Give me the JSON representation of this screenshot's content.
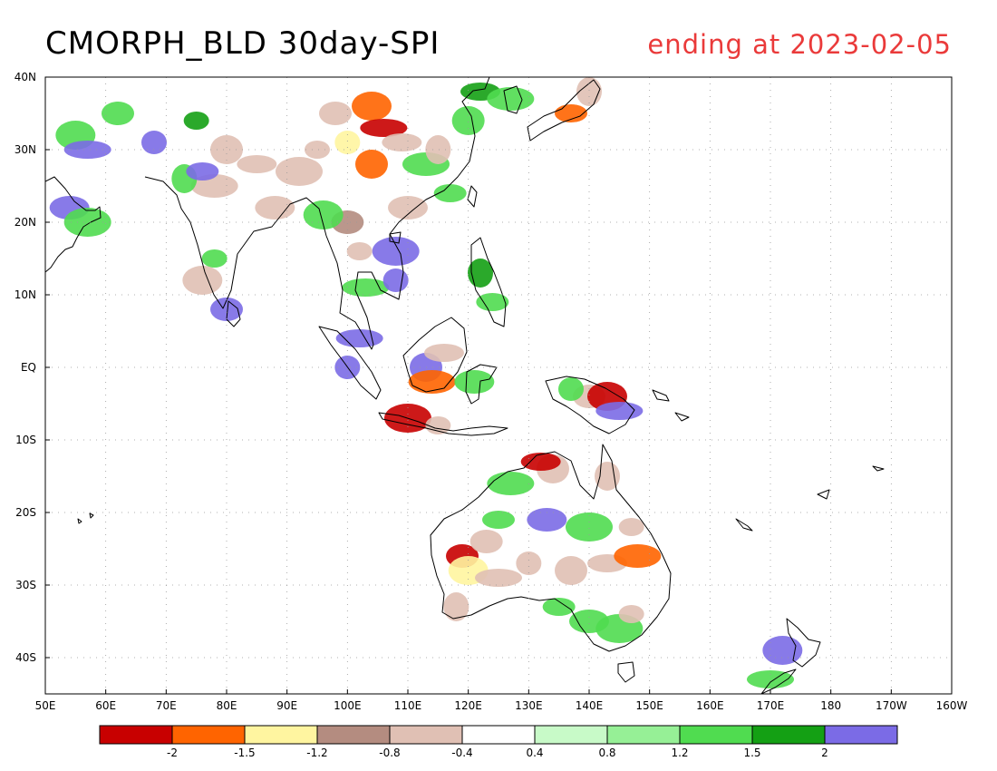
{
  "title": "CMORPH_BLD 30day-SPI",
  "subtitle": "ending at 2023-02-05",
  "colors": {
    "title": "#000000",
    "subtitle": "#ea3a3a",
    "land": "#ffffff",
    "coast": "#000000",
    "grid": "#999999"
  },
  "map": {
    "projection": "equirectangular",
    "lon_range": [
      50,
      200
    ],
    "lat_range": [
      -45,
      40
    ]
  },
  "lat_ticks": [
    {
      "lat": 40,
      "label": "40N"
    },
    {
      "lat": 30,
      "label": "30N"
    },
    {
      "lat": 20,
      "label": "20N"
    },
    {
      "lat": 10,
      "label": "10N"
    },
    {
      "lat": 0,
      "label": "EQ"
    },
    {
      "lat": -10,
      "label": "10S"
    },
    {
      "lat": -20,
      "label": "20S"
    },
    {
      "lat": -30,
      "label": "30S"
    },
    {
      "lat": -40,
      "label": "40S"
    }
  ],
  "lon_ticks": [
    {
      "lon": 50,
      "label": "50E"
    },
    {
      "lon": 60,
      "label": "60E"
    },
    {
      "lon": 70,
      "label": "70E"
    },
    {
      "lon": 80,
      "label": "80E"
    },
    {
      "lon": 90,
      "label": "90E"
    },
    {
      "lon": 100,
      "label": "100E"
    },
    {
      "lon": 110,
      "label": "110E"
    },
    {
      "lon": 120,
      "label": "120E"
    },
    {
      "lon": 130,
      "label": "130E"
    },
    {
      "lon": 140,
      "label": "140E"
    },
    {
      "lon": 150,
      "label": "150E"
    },
    {
      "lon": 160,
      "label": "160E"
    },
    {
      "lon": 170,
      "label": "170E"
    },
    {
      "lon": 180,
      "label": "180"
    },
    {
      "lon": 190,
      "label": "170W"
    },
    {
      "lon": 200,
      "label": "160W"
    }
  ],
  "colorbar": {
    "colors": [
      "#c80000",
      "#ff6400",
      "#fff5a0",
      "#b48c80",
      "#e0c0b4",
      "#ffffff",
      "#c8fac8",
      "#96f096",
      "#50dc50",
      "#14a014",
      "#7b6be6"
    ],
    "labels": [
      "-2",
      "-1.5",
      "-1.2",
      "-0.8",
      "-0.4",
      "0.4",
      "0.8",
      "1.2",
      "1.5",
      "2"
    ]
  },
  "shading": [
    {
      "lon": 75,
      "lat": 34,
      "cls": 9
    },
    {
      "lon": 62,
      "lat": 35,
      "cls": 8
    },
    {
      "lon": 55,
      "lat": 32,
      "cls": 8
    },
    {
      "lon": 57,
      "lat": 30,
      "cls": 10
    },
    {
      "lon": 68,
      "lat": 31,
      "cls": 10
    },
    {
      "lon": 80,
      "lat": 30,
      "cls": 4
    },
    {
      "lon": 85,
      "lat": 28,
      "cls": 4
    },
    {
      "lon": 78,
      "lat": 25,
      "cls": 4
    },
    {
      "lon": 73,
      "lat": 26,
      "cls": 8
    },
    {
      "lon": 76,
      "lat": 27,
      "cls": 10
    },
    {
      "lon": 88,
      "lat": 22,
      "cls": 4
    },
    {
      "lon": 92,
      "lat": 27,
      "cls": 4
    },
    {
      "lon": 95,
      "lat": 30,
      "cls": 4
    },
    {
      "lon": 98,
      "lat": 35,
      "cls": 4
    },
    {
      "lon": 104,
      "lat": 36,
      "cls": 1
    },
    {
      "lon": 106,
      "lat": 33,
      "cls": 0
    },
    {
      "lon": 100,
      "lat": 31,
      "cls": 2
    },
    {
      "lon": 104,
      "lat": 28,
      "cls": 1
    },
    {
      "lon": 109,
      "lat": 31,
      "cls": 4
    },
    {
      "lon": 113,
      "lat": 28,
      "cls": 8
    },
    {
      "lon": 115,
      "lat": 30,
      "cls": 4
    },
    {
      "lon": 117,
      "lat": 24,
      "cls": 8
    },
    {
      "lon": 110,
      "lat": 22,
      "cls": 4
    },
    {
      "lon": 108,
      "lat": 16,
      "cls": 10
    },
    {
      "lon": 102,
      "lat": 16,
      "cls": 4
    },
    {
      "lon": 100,
      "lat": 20,
      "cls": 3
    },
    {
      "lon": 96,
      "lat": 21,
      "cls": 8
    },
    {
      "lon": 103,
      "lat": 11,
      "cls": 8
    },
    {
      "lon": 108,
      "lat": 12,
      "cls": 10
    },
    {
      "lon": 120,
      "lat": 34,
      "cls": 8
    },
    {
      "lon": 122,
      "lat": 38,
      "cls": 9
    },
    {
      "lon": 127,
      "lat": 37,
      "cls": 8
    },
    {
      "lon": 140,
      "lat": 38,
      "cls": 4
    },
    {
      "lon": 137,
      "lat": 35,
      "cls": 1
    },
    {
      "lon": 54,
      "lat": 22,
      "cls": 10
    },
    {
      "lon": 57,
      "lat": 20,
      "cls": 8
    },
    {
      "lon": 78,
      "lat": 15,
      "cls": 8
    },
    {
      "lon": 80,
      "lat": 8,
      "cls": 10
    },
    {
      "lon": 76,
      "lat": 12,
      "cls": 4
    },
    {
      "lon": 102,
      "lat": 4,
      "cls": 10
    },
    {
      "lon": 100,
      "lat": 0,
      "cls": 10
    },
    {
      "lon": 113,
      "lat": 0,
      "cls": 10
    },
    {
      "lon": 116,
      "lat": 2,
      "cls": 4
    },
    {
      "lon": 114,
      "lat": -2,
      "cls": 1
    },
    {
      "lon": 122,
      "lat": 13,
      "cls": 9
    },
    {
      "lon": 124,
      "lat": 9,
      "cls": 8
    },
    {
      "lon": 121,
      "lat": -2,
      "cls": 8
    },
    {
      "lon": 110,
      "lat": -7,
      "cls": 0
    },
    {
      "lon": 115,
      "lat": -8,
      "cls": 4
    },
    {
      "lon": 140,
      "lat": -4,
      "cls": 4
    },
    {
      "lon": 143,
      "lat": -4,
      "cls": 0
    },
    {
      "lon": 145,
      "lat": -6,
      "cls": 10
    },
    {
      "lon": 137,
      "lat": -3,
      "cls": 8
    },
    {
      "lon": 134,
      "lat": -14,
      "cls": 4
    },
    {
      "lon": 132,
      "lat": -13,
      "cls": 0
    },
    {
      "lon": 127,
      "lat": -16,
      "cls": 8
    },
    {
      "lon": 143,
      "lat": -15,
      "cls": 4
    },
    {
      "lon": 125,
      "lat": -21,
      "cls": 8
    },
    {
      "lon": 133,
      "lat": -21,
      "cls": 10
    },
    {
      "lon": 140,
      "lat": -22,
      "cls": 8
    },
    {
      "lon": 147,
      "lat": -22,
      "cls": 4
    },
    {
      "lon": 119,
      "lat": -26,
      "cls": 0
    },
    {
      "lon": 120,
      "lat": -28,
      "cls": 2
    },
    {
      "lon": 125,
      "lat": -29,
      "cls": 4
    },
    {
      "lon": 130,
      "lat": -27,
      "cls": 4
    },
    {
      "lon": 137,
      "lat": -28,
      "cls": 4
    },
    {
      "lon": 143,
      "lat": -27,
      "cls": 4
    },
    {
      "lon": 148,
      "lat": -26,
      "cls": 1
    },
    {
      "lon": 118,
      "lat": -33,
      "cls": 4
    },
    {
      "lon": 135,
      "lat": -33,
      "cls": 8
    },
    {
      "lon": 140,
      "lat": -35,
      "cls": 8
    },
    {
      "lon": 145,
      "lat": -36,
      "cls": 8
    },
    {
      "lon": 147,
      "lat": -34,
      "cls": 4
    },
    {
      "lon": 123,
      "lat": -24,
      "cls": 4
    },
    {
      "lon": 172,
      "lat": -39,
      "cls": 10
    },
    {
      "lon": 170,
      "lat": -43,
      "cls": 8
    }
  ]
}
